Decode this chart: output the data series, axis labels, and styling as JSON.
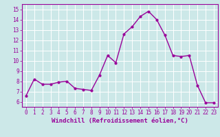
{
  "x": [
    0,
    1,
    2,
    3,
    4,
    5,
    6,
    7,
    8,
    9,
    10,
    11,
    12,
    13,
    14,
    15,
    16,
    17,
    18,
    19,
    20,
    21,
    22,
    23
  ],
  "y": [
    6.6,
    8.2,
    7.7,
    7.7,
    7.9,
    8.0,
    7.3,
    7.2,
    7.1,
    8.6,
    10.5,
    9.8,
    12.6,
    13.3,
    14.3,
    14.8,
    14.0,
    12.5,
    10.5,
    10.4,
    10.5,
    7.6,
    5.9,
    5.9
  ],
  "line_color": "#990099",
  "marker": "o",
  "marker_size": 2.0,
  "line_width": 1.0,
  "xlabel": "Windchill (Refroidissement éolien,°C)",
  "xlabel_fontsize": 6.5,
  "ylabel_ticks": [
    6,
    7,
    8,
    9,
    10,
    11,
    12,
    13,
    14,
    15
  ],
  "xlim": [
    -0.5,
    23.5
  ],
  "ylim": [
    5.5,
    15.5
  ],
  "background_color": "#cce8e8",
  "grid_color": "#aacccc",
  "tick_color": "#990099",
  "tick_fontsize": 5.5,
  "spine_color": "#990099"
}
